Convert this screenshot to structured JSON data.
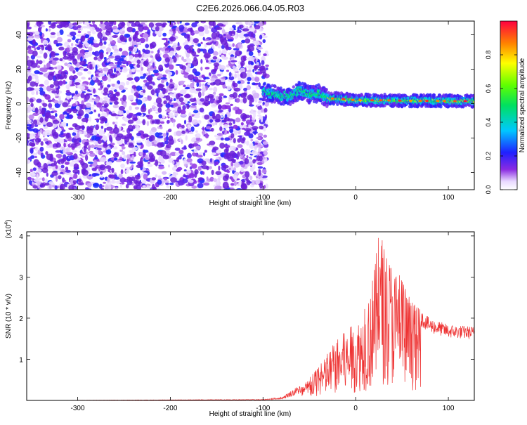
{
  "title": "C2E6.2026.066.04.05.R03",
  "chart_data": [
    {
      "type": "heatmap",
      "xlabel": "Height of straight line (km)",
      "ylabel": "Frequency (Hz)",
      "xlim": [
        -355,
        128
      ],
      "ylim": [
        -50,
        48
      ],
      "xticks": [
        -300,
        -200,
        -100,
        0,
        100
      ],
      "yticks": [
        -40,
        -20,
        0,
        20,
        40
      ],
      "noise_region_x": [
        -355,
        -100
      ],
      "signal_ridge": [
        {
          "x": -100,
          "y": 7
        },
        {
          "x": -85,
          "y": 5
        },
        {
          "x": -70,
          "y": 4
        },
        {
          "x": -60,
          "y": 8
        },
        {
          "x": -50,
          "y": 5
        },
        {
          "x": -40,
          "y": 6
        },
        {
          "x": -30,
          "y": 3
        },
        {
          "x": -20,
          "y": 3
        },
        {
          "x": 0,
          "y": 2
        },
        {
          "x": 20,
          "y": 2
        },
        {
          "x": 40,
          "y": 1.8
        },
        {
          "x": 60,
          "y": 1.7
        },
        {
          "x": 80,
          "y": 1.6
        },
        {
          "x": 100,
          "y": 1.5
        },
        {
          "x": 128,
          "y": 1.5
        }
      ],
      "colorbar": {
        "label": "Normalized spectral amplitude",
        "range": [
          0,
          1
        ],
        "ticks": [
          "0.0",
          "0.2",
          "0.4",
          "0.6",
          "0.8"
        ],
        "tick_values": [
          0,
          0.2,
          0.4,
          0.6,
          0.8
        ]
      }
    },
    {
      "type": "line",
      "xlabel": "Height of straight line (km)",
      "ylabel": "SNR (10 * v/v)",
      "scale_label": "(x10",
      "scale_exp": "4",
      "scale_close": ")",
      "xlim": [
        -355,
        128
      ],
      "ylim": [
        0,
        4.1
      ],
      "xticks": [
        -300,
        -200,
        -100,
        0,
        100
      ],
      "yticks": [
        1,
        2,
        3,
        4
      ],
      "color": "#ee3333",
      "envelope": [
        {
          "x": -355,
          "y": 0.0
        },
        {
          "x": -100,
          "y": 0.02
        },
        {
          "x": -80,
          "y": 0.06
        },
        {
          "x": -60,
          "y": 0.3
        },
        {
          "x": -40,
          "y": 0.8
        },
        {
          "x": -20,
          "y": 1.5
        },
        {
          "x": 0,
          "y": 1.9
        },
        {
          "x": 15,
          "y": 2.4
        },
        {
          "x": 25,
          "y": 4.05
        },
        {
          "x": 40,
          "y": 3.4
        },
        {
          "x": 60,
          "y": 2.4
        },
        {
          "x": 80,
          "y": 2.0
        },
        {
          "x": 100,
          "y": 1.85
        },
        {
          "x": 128,
          "y": 1.8
        }
      ]
    }
  ]
}
